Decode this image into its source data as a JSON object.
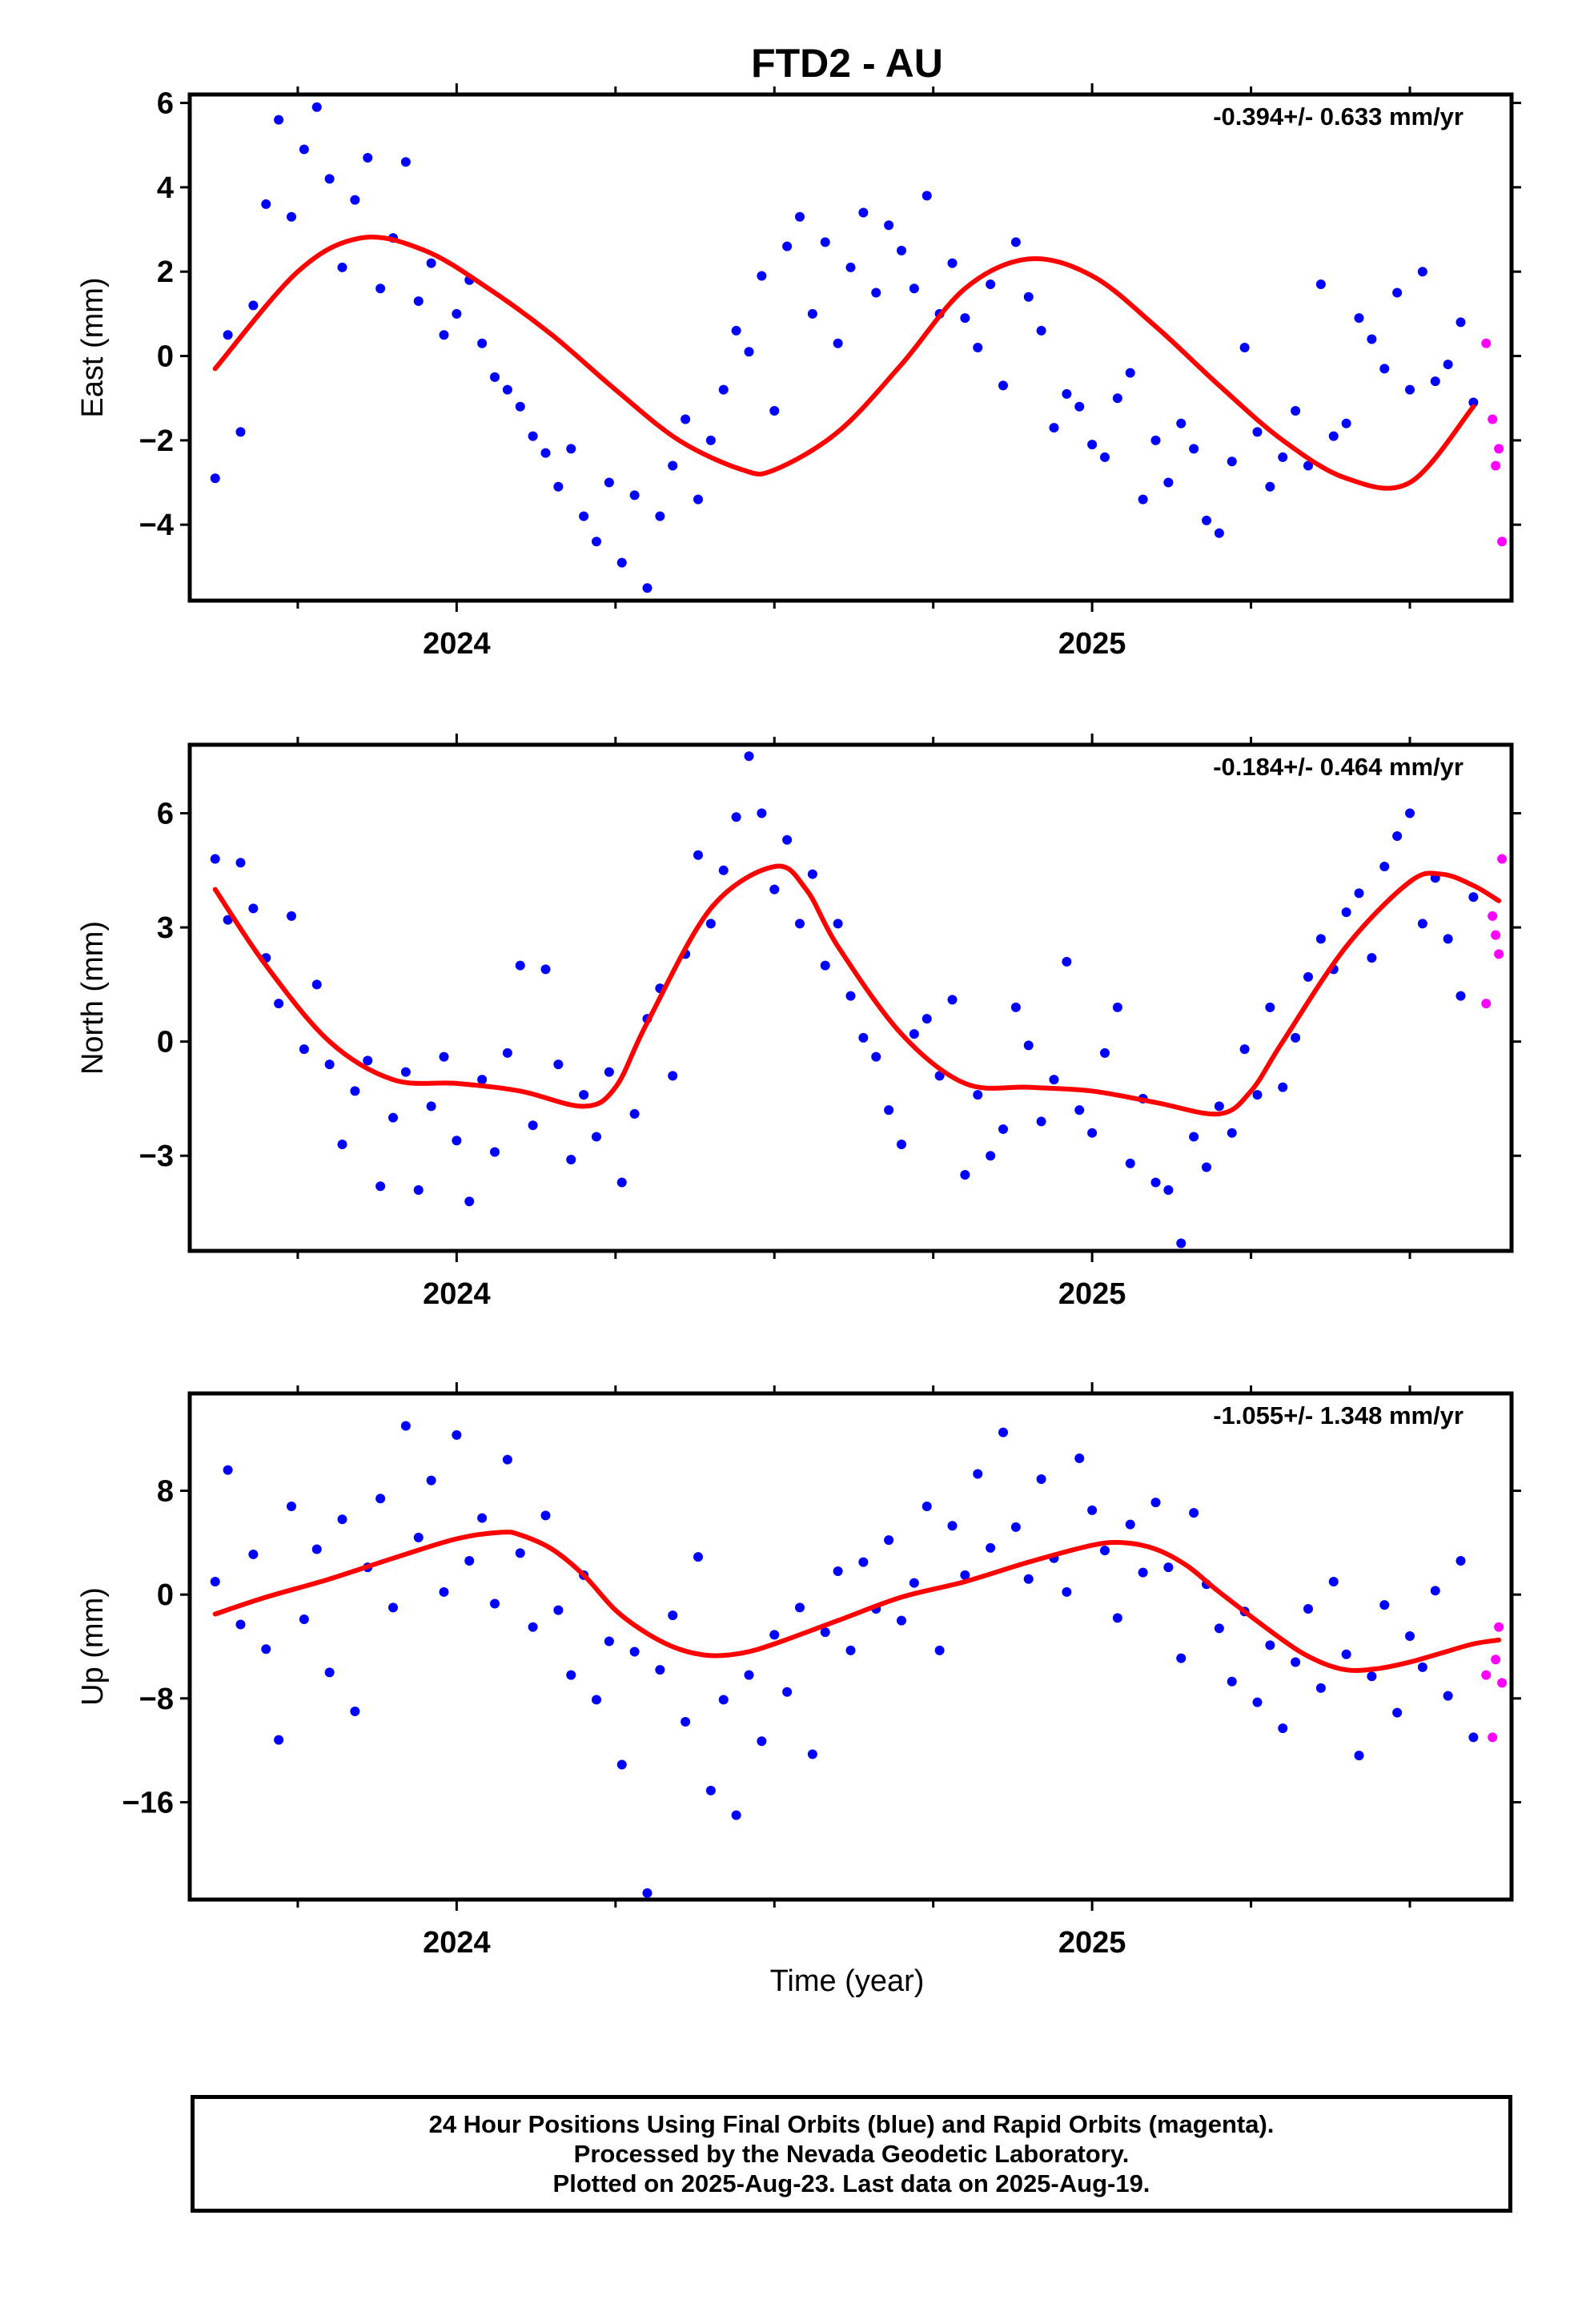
{
  "title": "FTD2 - AU",
  "xlabel": "Time (year)",
  "colors": {
    "final": "#0000ff",
    "rapid": "#ff00ff",
    "model": "#ff0000",
    "frame": "#000000"
  },
  "footer": {
    "line1": "24 Hour Positions Using Final Orbits (blue) and Rapid Orbits (magenta).",
    "line2": "Processed by the Nevada Geodetic Laboratory.",
    "line3": "Plotted on 2025-Aug-23. Last data on 2025-Aug-19."
  },
  "chart_data": [
    {
      "type": "scatter",
      "ylabel": "East (mm)",
      "rate": "-0.394+/- 0.633 mm/yr",
      "xlim": [
        2023.58,
        2025.66
      ],
      "ylim": [
        -5.8,
        6.2
      ],
      "yticks": [
        -4,
        -2,
        0,
        2,
        4,
        6
      ],
      "xticks": [
        2024,
        2025
      ],
      "model": {
        "x": [
          2023.62,
          2023.75,
          2023.85,
          2023.95,
          2024.05,
          2024.15,
          2024.25,
          2024.35,
          2024.45,
          2024.5,
          2024.6,
          2024.7,
          2024.8,
          2024.9,
          2025.0,
          2025.1,
          2025.2,
          2025.3,
          2025.4,
          2025.5,
          2025.6
        ],
        "y": [
          -0.3,
          2.0,
          2.8,
          2.5,
          1.6,
          0.5,
          -0.8,
          -2.0,
          -2.7,
          -2.7,
          -1.8,
          -0.2,
          1.6,
          2.3,
          1.9,
          0.7,
          -0.7,
          -2.0,
          -2.9,
          -3.0,
          -1.2
        ]
      },
      "final": {
        "x": [
          2023.62,
          2023.64,
          2023.66,
          2023.68,
          2023.7,
          2023.72,
          2023.74,
          2023.76,
          2023.78,
          2023.8,
          2023.82,
          2023.84,
          2023.86,
          2023.88,
          2023.9,
          2023.92,
          2023.94,
          2023.96,
          2023.98,
          2024.0,
          2024.02,
          2024.04,
          2024.06,
          2024.08,
          2024.1,
          2024.12,
          2024.14,
          2024.16,
          2024.18,
          2024.2,
          2024.22,
          2024.24,
          2024.26,
          2024.28,
          2024.3,
          2024.32,
          2024.34,
          2024.36,
          2024.38,
          2024.4,
          2024.42,
          2024.44,
          2024.46,
          2024.48,
          2024.5,
          2024.52,
          2024.54,
          2024.56,
          2024.58,
          2024.6,
          2024.62,
          2024.64,
          2024.66,
          2024.68,
          2024.7,
          2024.72,
          2024.74,
          2024.76,
          2024.78,
          2024.8,
          2024.82,
          2024.84,
          2024.86,
          2024.88,
          2024.9,
          2024.92,
          2024.94,
          2024.96,
          2024.98,
          2025.0,
          2025.02,
          2025.04,
          2025.06,
          2025.08,
          2025.1,
          2025.12,
          2025.14,
          2025.16,
          2025.18,
          2025.2,
          2025.22,
          2025.24,
          2025.26,
          2025.28,
          2025.3,
          2025.32,
          2025.34,
          2025.36,
          2025.38,
          2025.4,
          2025.42,
          2025.44,
          2025.46,
          2025.48,
          2025.5,
          2025.52,
          2025.54,
          2025.56,
          2025.58,
          2025.6
        ],
        "y": [
          -2.9,
          0.5,
          -1.8,
          1.2,
          3.6,
          5.6,
          3.3,
          4.9,
          5.9,
          4.2,
          2.1,
          3.7,
          4.7,
          1.6,
          2.8,
          4.6,
          1.3,
          2.2,
          0.5,
          1.0,
          1.8,
          0.3,
          -0.5,
          -0.8,
          -1.2,
          -1.9,
          -2.3,
          -3.1,
          -2.2,
          -3.8,
          -4.4,
          -3.0,
          -4.9,
          -3.3,
          -5.5,
          -3.8,
          -2.6,
          -1.5,
          -3.4,
          -2.0,
          -0.8,
          0.6,
          0.1,
          1.9,
          -1.3,
          2.6,
          3.3,
          1.0,
          2.7,
          0.3,
          2.1,
          3.4,
          1.5,
          3.1,
          2.5,
          1.6,
          3.8,
          1.0,
          2.2,
          0.9,
          0.2,
          1.7,
          -0.7,
          2.7,
          1.4,
          0.6,
          -1.7,
          -0.9,
          -1.2,
          -2.1,
          -2.4,
          -1.0,
          -0.4,
          -3.4,
          -2.0,
          -3.0,
          -1.6,
          -2.2,
          -3.9,
          -4.2,
          -2.5,
          0.2,
          -1.8,
          -3.1,
          -2.4,
          -1.3,
          -2.6,
          1.7,
          -1.9,
          -1.6,
          0.9,
          0.4,
          -0.3,
          1.5,
          -0.8,
          2.0,
          -0.6,
          -0.2,
          0.8,
          -1.1
        ]
      },
      "rapid": {
        "x": [
          2025.62,
          2025.63,
          2025.635,
          2025.64,
          2025.645
        ],
        "y": [
          0.3,
          -1.5,
          -2.6,
          -2.2,
          -4.4
        ]
      }
    },
    {
      "type": "scatter",
      "ylabel": "North (mm)",
      "rate": "-0.184+/- 0.464 mm/yr",
      "xlim": [
        2023.58,
        2025.66
      ],
      "ylim": [
        -5.5,
        7.8
      ],
      "yticks": [
        -3,
        0,
        3,
        6
      ],
      "xticks": [
        2024,
        2025
      ],
      "model": {
        "x": [
          2023.62,
          2023.7,
          2023.8,
          2023.9,
          2024.0,
          2024.1,
          2024.2,
          2024.25,
          2024.3,
          2024.4,
          2024.5,
          2024.55,
          2024.6,
          2024.7,
          2024.8,
          2024.9,
          2025.0,
          2025.1,
          2025.2,
          2025.25,
          2025.3,
          2025.4,
          2025.5,
          2025.55,
          2025.6,
          2025.64
        ],
        "y": [
          4.0,
          2.0,
          0.0,
          -1.0,
          -1.1,
          -1.3,
          -1.7,
          -1.2,
          0.5,
          3.5,
          4.6,
          4.0,
          2.5,
          0.2,
          -1.1,
          -1.2,
          -1.3,
          -1.6,
          -1.9,
          -1.3,
          0.0,
          2.5,
          4.2,
          4.4,
          4.1,
          3.7
        ]
      },
      "final": {
        "x": [
          2023.62,
          2023.64,
          2023.66,
          2023.68,
          2023.7,
          2023.72,
          2023.74,
          2023.76,
          2023.78,
          2023.8,
          2023.82,
          2023.84,
          2023.86,
          2023.88,
          2023.9,
          2023.92,
          2023.94,
          2023.96,
          2023.98,
          2024.0,
          2024.02,
          2024.04,
          2024.06,
          2024.08,
          2024.1,
          2024.12,
          2024.14,
          2024.16,
          2024.18,
          2024.2,
          2024.22,
          2024.24,
          2024.26,
          2024.28,
          2024.3,
          2024.32,
          2024.34,
          2024.36,
          2024.38,
          2024.4,
          2024.42,
          2024.44,
          2024.46,
          2024.48,
          2024.5,
          2024.52,
          2024.54,
          2024.56,
          2024.58,
          2024.6,
          2024.62,
          2024.64,
          2024.66,
          2024.68,
          2024.7,
          2024.72,
          2024.74,
          2024.76,
          2024.78,
          2024.8,
          2024.82,
          2024.84,
          2024.86,
          2024.88,
          2024.9,
          2024.92,
          2024.94,
          2024.96,
          2024.98,
          2025.0,
          2025.02,
          2025.04,
          2025.06,
          2025.08,
          2025.1,
          2025.12,
          2025.14,
          2025.16,
          2025.18,
          2025.2,
          2025.22,
          2025.24,
          2025.26,
          2025.28,
          2025.3,
          2025.32,
          2025.34,
          2025.36,
          2025.38,
          2025.4,
          2025.42,
          2025.44,
          2025.46,
          2025.48,
          2025.5,
          2025.52,
          2025.54,
          2025.56,
          2025.58,
          2025.6
        ],
        "y": [
          4.8,
          3.2,
          4.7,
          3.5,
          2.2,
          1.0,
          3.3,
          -0.2,
          1.5,
          -0.6,
          -2.7,
          -1.3,
          -0.5,
          -3.8,
          -2.0,
          -0.8,
          -3.9,
          -1.7,
          -0.4,
          -2.6,
          -4.2,
          -1.0,
          -2.9,
          -0.3,
          2.0,
          -2.2,
          1.9,
          -0.6,
          -3.1,
          -1.4,
          -2.5,
          -0.8,
          -3.7,
          -1.9,
          0.6,
          1.4,
          -0.9,
          2.3,
          4.9,
          3.1,
          4.5,
          5.9,
          7.5,
          6.0,
          4.0,
          5.3,
          3.1,
          4.4,
          2.0,
          3.1,
          1.2,
          0.1,
          -0.4,
          -1.8,
          -2.7,
          0.2,
          0.6,
          -0.9,
          1.1,
          -3.5,
          -1.4,
          -3.0,
          -2.3,
          0.9,
          -0.1,
          -2.1,
          -1.0,
          2.1,
          -1.8,
          -2.4,
          -0.3,
          0.9,
          -3.2,
          -1.5,
          -3.7,
          -3.9,
          -5.3,
          -2.5,
          -3.3,
          -1.7,
          -2.4,
          -0.2,
          -1.4,
          0.9,
          -1.2,
          0.1,
          1.7,
          2.7,
          1.9,
          3.4,
          3.9,
          2.2,
          4.6,
          5.4,
          6.0,
          3.1,
          4.3,
          2.7,
          1.2,
          3.8
        ]
      },
      "rapid": {
        "x": [
          2025.62,
          2025.63,
          2025.635,
          2025.64,
          2025.645
        ],
        "y": [
          1.0,
          3.3,
          2.8,
          2.3,
          4.8
        ]
      }
    },
    {
      "type": "scatter",
      "ylabel": "Up (mm)",
      "rate": "-1.055+/- 1.348 mm/yr",
      "xlim": [
        2023.58,
        2025.66
      ],
      "ylim": [
        -23.5,
        15.5
      ],
      "yticks": [
        -16,
        -8,
        0,
        8
      ],
      "xticks": [
        2024,
        2025
      ],
      "model": {
        "x": [
          2023.62,
          2023.7,
          2023.8,
          2023.9,
          2024.0,
          2024.07,
          2024.1,
          2024.15,
          2024.2,
          2024.25,
          2024.3,
          2024.35,
          2024.4,
          2024.45,
          2024.5,
          2024.6,
          2024.7,
          2024.8,
          2024.9,
          2025.0,
          2025.05,
          2025.1,
          2025.15,
          2025.2,
          2025.3,
          2025.35,
          2025.4,
          2025.45,
          2025.5,
          2025.55,
          2025.6,
          2025.64
        ],
        "y": [
          -1.5,
          -0.2,
          1.2,
          2.8,
          4.3,
          4.8,
          4.6,
          3.5,
          1.5,
          -1.2,
          -3.0,
          -4.2,
          -4.7,
          -4.5,
          -3.8,
          -2.0,
          -0.2,
          1.0,
          2.5,
          3.8,
          4.0,
          3.5,
          2.2,
          0.2,
          -3.5,
          -5.0,
          -5.8,
          -5.7,
          -5.2,
          -4.5,
          -3.8,
          -3.5
        ]
      },
      "final": {
        "x": [
          2023.62,
          2023.64,
          2023.66,
          2023.68,
          2023.7,
          2023.72,
          2023.74,
          2023.76,
          2023.78,
          2023.8,
          2023.82,
          2023.84,
          2023.86,
          2023.88,
          2023.9,
          2023.92,
          2023.94,
          2023.96,
          2023.98,
          2024.0,
          2024.02,
          2024.04,
          2024.06,
          2024.08,
          2024.1,
          2024.12,
          2024.14,
          2024.16,
          2024.18,
          2024.2,
          2024.22,
          2024.24,
          2024.26,
          2024.28,
          2024.3,
          2024.32,
          2024.34,
          2024.36,
          2024.38,
          2024.4,
          2024.42,
          2024.44,
          2024.46,
          2024.48,
          2024.5,
          2024.52,
          2024.54,
          2024.56,
          2024.58,
          2024.6,
          2024.62,
          2024.64,
          2024.66,
          2024.68,
          2024.7,
          2024.72,
          2024.74,
          2024.76,
          2024.78,
          2024.8,
          2024.82,
          2024.84,
          2024.86,
          2024.88,
          2024.9,
          2024.92,
          2024.94,
          2024.96,
          2024.98,
          2025.0,
          2025.02,
          2025.04,
          2025.06,
          2025.08,
          2025.1,
          2025.12,
          2025.14,
          2025.16,
          2025.18,
          2025.2,
          2025.22,
          2025.24,
          2025.26,
          2025.28,
          2025.3,
          2025.32,
          2025.34,
          2025.36,
          2025.38,
          2025.4,
          2025.42,
          2025.44,
          2025.46,
          2025.48,
          2025.5,
          2025.52,
          2025.54,
          2025.56,
          2025.58,
          2025.6
        ],
        "y": [
          1.0,
          9.6,
          -2.3,
          3.1,
          -4.2,
          -11.2,
          6.8,
          -1.9,
          3.5,
          -6.0,
          5.8,
          -9.0,
          2.1,
          7.4,
          -1.0,
          13.0,
          4.4,
          8.8,
          0.2,
          12.3,
          2.6,
          5.9,
          -0.7,
          10.4,
          3.2,
          -2.5,
          6.1,
          -1.2,
          -6.2,
          1.5,
          -8.1,
          -3.6,
          -13.1,
          -4.4,
          -23.0,
          -5.8,
          -1.6,
          -9.8,
          2.9,
          -15.1,
          -8.1,
          -17.0,
          -6.2,
          -11.3,
          -3.1,
          -7.5,
          -1.0,
          -12.3,
          -2.9,
          1.8,
          -4.3,
          2.5,
          -1.1,
          4.2,
          -2.0,
          0.9,
          6.8,
          -4.3,
          5.3,
          1.5,
          9.3,
          3.6,
          12.5,
          5.2,
          1.2,
          8.9,
          2.8,
          0.2,
          10.5,
          6.5,
          3.4,
          -1.8,
          5.4,
          1.7,
          7.1,
          2.1,
          -4.9,
          6.3,
          0.8,
          -2.6,
          -6.7,
          -1.3,
          -8.3,
          -3.9,
          -10.3,
          -5.2,
          -1.1,
          -7.2,
          1.0,
          -4.6,
          -12.4,
          -6.3,
          -0.8,
          -9.1,
          -3.2,
          -5.6,
          0.3,
          -7.8,
          2.6,
          -11.0
        ]
      },
      "rapid": {
        "x": [
          2025.62,
          2025.63,
          2025.635,
          2025.64,
          2025.645
        ],
        "y": [
          -6.2,
          -11.0,
          -5.0,
          -2.5,
          -6.8
        ]
      }
    }
  ]
}
